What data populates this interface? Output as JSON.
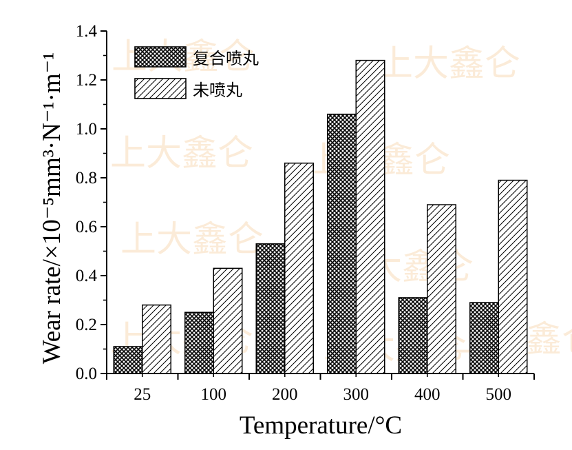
{
  "chart_data": {
    "type": "bar",
    "categories": [
      "25",
      "100",
      "200",
      "300",
      "400",
      "500"
    ],
    "series": [
      {
        "name": "复合喷丸",
        "values": [
          0.11,
          0.25,
          0.53,
          1.06,
          0.31,
          0.29
        ],
        "pattern": "crosshatch"
      },
      {
        "name": "未喷丸",
        "values": [
          0.28,
          0.43,
          0.86,
          1.28,
          0.69,
          0.79
        ],
        "pattern": "diagonal"
      }
    ],
    "xlabel": "Temperature/°C",
    "ylabel": "Wear rate/×10⁻⁵mm³·N⁻¹·m⁻¹",
    "ylim": [
      0,
      1.4
    ],
    "yticks": [
      "0.0",
      "0.2",
      "0.4",
      "0.6",
      "0.8",
      "1.0",
      "1.2",
      "1.4"
    ],
    "legend_position": "top-left",
    "grid": false
  },
  "watermark": "上大鑫仑",
  "colors": {
    "axis": "#000000",
    "bar_edge": "#000000",
    "watermark": "#f3c489"
  }
}
